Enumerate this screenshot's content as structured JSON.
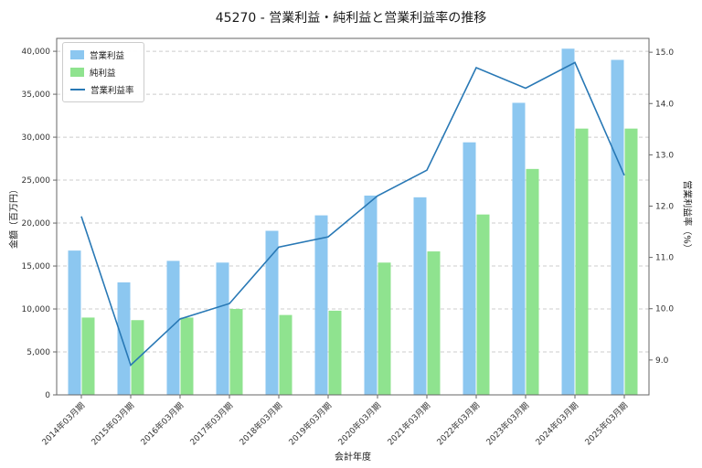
{
  "chart_data": {
    "type": "bar",
    "subtype": "grouped-bar-with-line",
    "title": "45270 - 営業利益・純利益と営業利益率の推移",
    "categories": [
      "2014年03月期",
      "2015年03月期",
      "2016年03月期",
      "2017年03月期",
      "2018年03月期",
      "2019年03月期",
      "2020年03月期",
      "2021年03月期",
      "2022年03月期",
      "2023年03月期",
      "2024年03月期",
      "2025年03月期"
    ],
    "bar_series": [
      {
        "key": "operating-income",
        "name": "営業利益",
        "color": "#8cc7f0",
        "values": [
          16800,
          13100,
          15600,
          15400,
          19100,
          20900,
          23200,
          23000,
          29400,
          34000,
          40300,
          39000
        ]
      },
      {
        "key": "net-income",
        "name": "純利益",
        "color": "#8fe38f",
        "values": [
          9000,
          8700,
          9000,
          10000,
          9300,
          9800,
          15400,
          16700,
          21000,
          26300,
          31000,
          31000
        ]
      }
    ],
    "line_series": [
      {
        "key": "operating-margin",
        "name": "営業利益率",
        "color": "#2878b5",
        "values": [
          11.8,
          8.9,
          9.8,
          10.1,
          11.2,
          11.4,
          12.2,
          12.7,
          14.7,
          14.3,
          14.8,
          12.6
        ]
      }
    ],
    "left_axis": {
      "label": "金額（百万円）",
      "ticks": [
        0,
        5000,
        10000,
        15000,
        20000,
        25000,
        30000,
        35000,
        40000
      ],
      "range": [
        0,
        41500
      ]
    },
    "right_axis": {
      "label": "営業利益率（%）",
      "ticks": [
        9.0,
        10.0,
        11.0,
        12.0,
        13.0,
        14.0,
        15.0
      ],
      "range": [
        8.32,
        15.27
      ]
    },
    "x_axis": {
      "label": "会計年度"
    },
    "legend_position": "upper-left",
    "grid": "horizontal-dashed"
  },
  "colors": {
    "background": "#ffffff",
    "grid": "#cccccc",
    "spine": "#666666",
    "text": "#333333"
  }
}
